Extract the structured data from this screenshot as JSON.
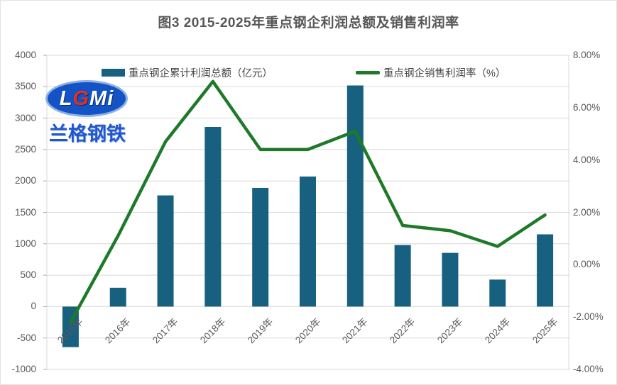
{
  "title": "图3 2015-2025年重点钢企利润总额及销售利润率",
  "logo": {
    "abbr_parts": [
      "L",
      "G",
      "Mi"
    ],
    "name": "兰格钢铁"
  },
  "legend": {
    "bar": {
      "label": "重点钢企累计利润总额（亿元）"
    },
    "line": {
      "label": "重点钢企销售利润率（%）"
    }
  },
  "colors": {
    "bar": "#176080",
    "line": "#1e7a28",
    "grid": "#d9d9d9",
    "tick": "#a6a6a6",
    "axis_text": "#595959"
  },
  "chart_data": {
    "type": "bar",
    "subtype": "bar+line combo, dual axis",
    "title": "图3 2015-2025年重点钢企利润总额及销售利润率",
    "categories": [
      "2015年",
      "2016年",
      "2017年",
      "2018年",
      "2019年",
      "2020年",
      "2021年",
      "2022年",
      "2023年",
      "2024年",
      "2025年"
    ],
    "series": [
      {
        "name": "重点钢企累计利润总额（亿元）",
        "type": "bar",
        "axis": "left",
        "color": "#176080",
        "values": [
          -645,
          300,
          1770,
          2860,
          1890,
          2070,
          3520,
          980,
          855,
          430,
          1150
        ]
      },
      {
        "name": "重点钢企销售利润率（%）",
        "type": "line",
        "axis": "right",
        "color": "#1e7a28",
        "values": [
          -2.2,
          1.1,
          4.7,
          7.0,
          4.4,
          4.4,
          5.1,
          1.5,
          1.3,
          0.7,
          1.9
        ]
      }
    ],
    "left_axis": {
      "min": -1000,
      "max": 4000,
      "step": 500,
      "tick_labels": [
        "4000",
        "3500",
        "3000",
        "2500",
        "2000",
        "1500",
        "1000",
        "500",
        "0",
        "-500",
        "-1000"
      ]
    },
    "right_axis": {
      "min": -4,
      "max": 8,
      "step": 2,
      "tick_labels": [
        "8.00%",
        "6.00%",
        "4.00%",
        "2.00%",
        "0.00%",
        "-2.00%",
        "-4.00%"
      ]
    },
    "grid": true,
    "legend_position": "top-inside"
  }
}
